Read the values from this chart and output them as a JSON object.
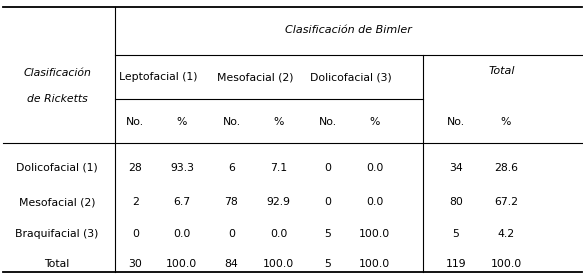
{
  "title": "Clasificación de Bimler",
  "row_header_line1": "Clasificación",
  "row_header_line2": "de Ricketts",
  "col_groups": [
    "Leptofacial (1)",
    "Mesofacial (2)",
    "Dolicofacial (3)"
  ],
  "total_label": "Total",
  "col_subheaders": [
    "No.",
    "%",
    "No.",
    "%",
    "No.",
    "%",
    "No.",
    "%"
  ],
  "row_labels": [
    "Dolicofacial (1)",
    "Mesofacial (2)",
    "Braquifacial (3)",
    "Total"
  ],
  "table_data": [
    [
      "28",
      "93.3",
      "6",
      "7.1",
      "0",
      "0.0",
      "34",
      "28.6"
    ],
    [
      "2",
      "6.7",
      "78",
      "92.9",
      "0",
      "0.0",
      "80",
      "67.2"
    ],
    [
      "0",
      "0.0",
      "0",
      "0.0",
      "5",
      "100.0",
      "5",
      "4.2"
    ],
    [
      "30",
      "100.0",
      "84",
      "100.0",
      "5",
      "100.0",
      "119",
      "100.0"
    ]
  ],
  "bg_color": "#ffffff",
  "text_color": "#000000",
  "font_size": 7.8,
  "italic_font_size": 8.0
}
